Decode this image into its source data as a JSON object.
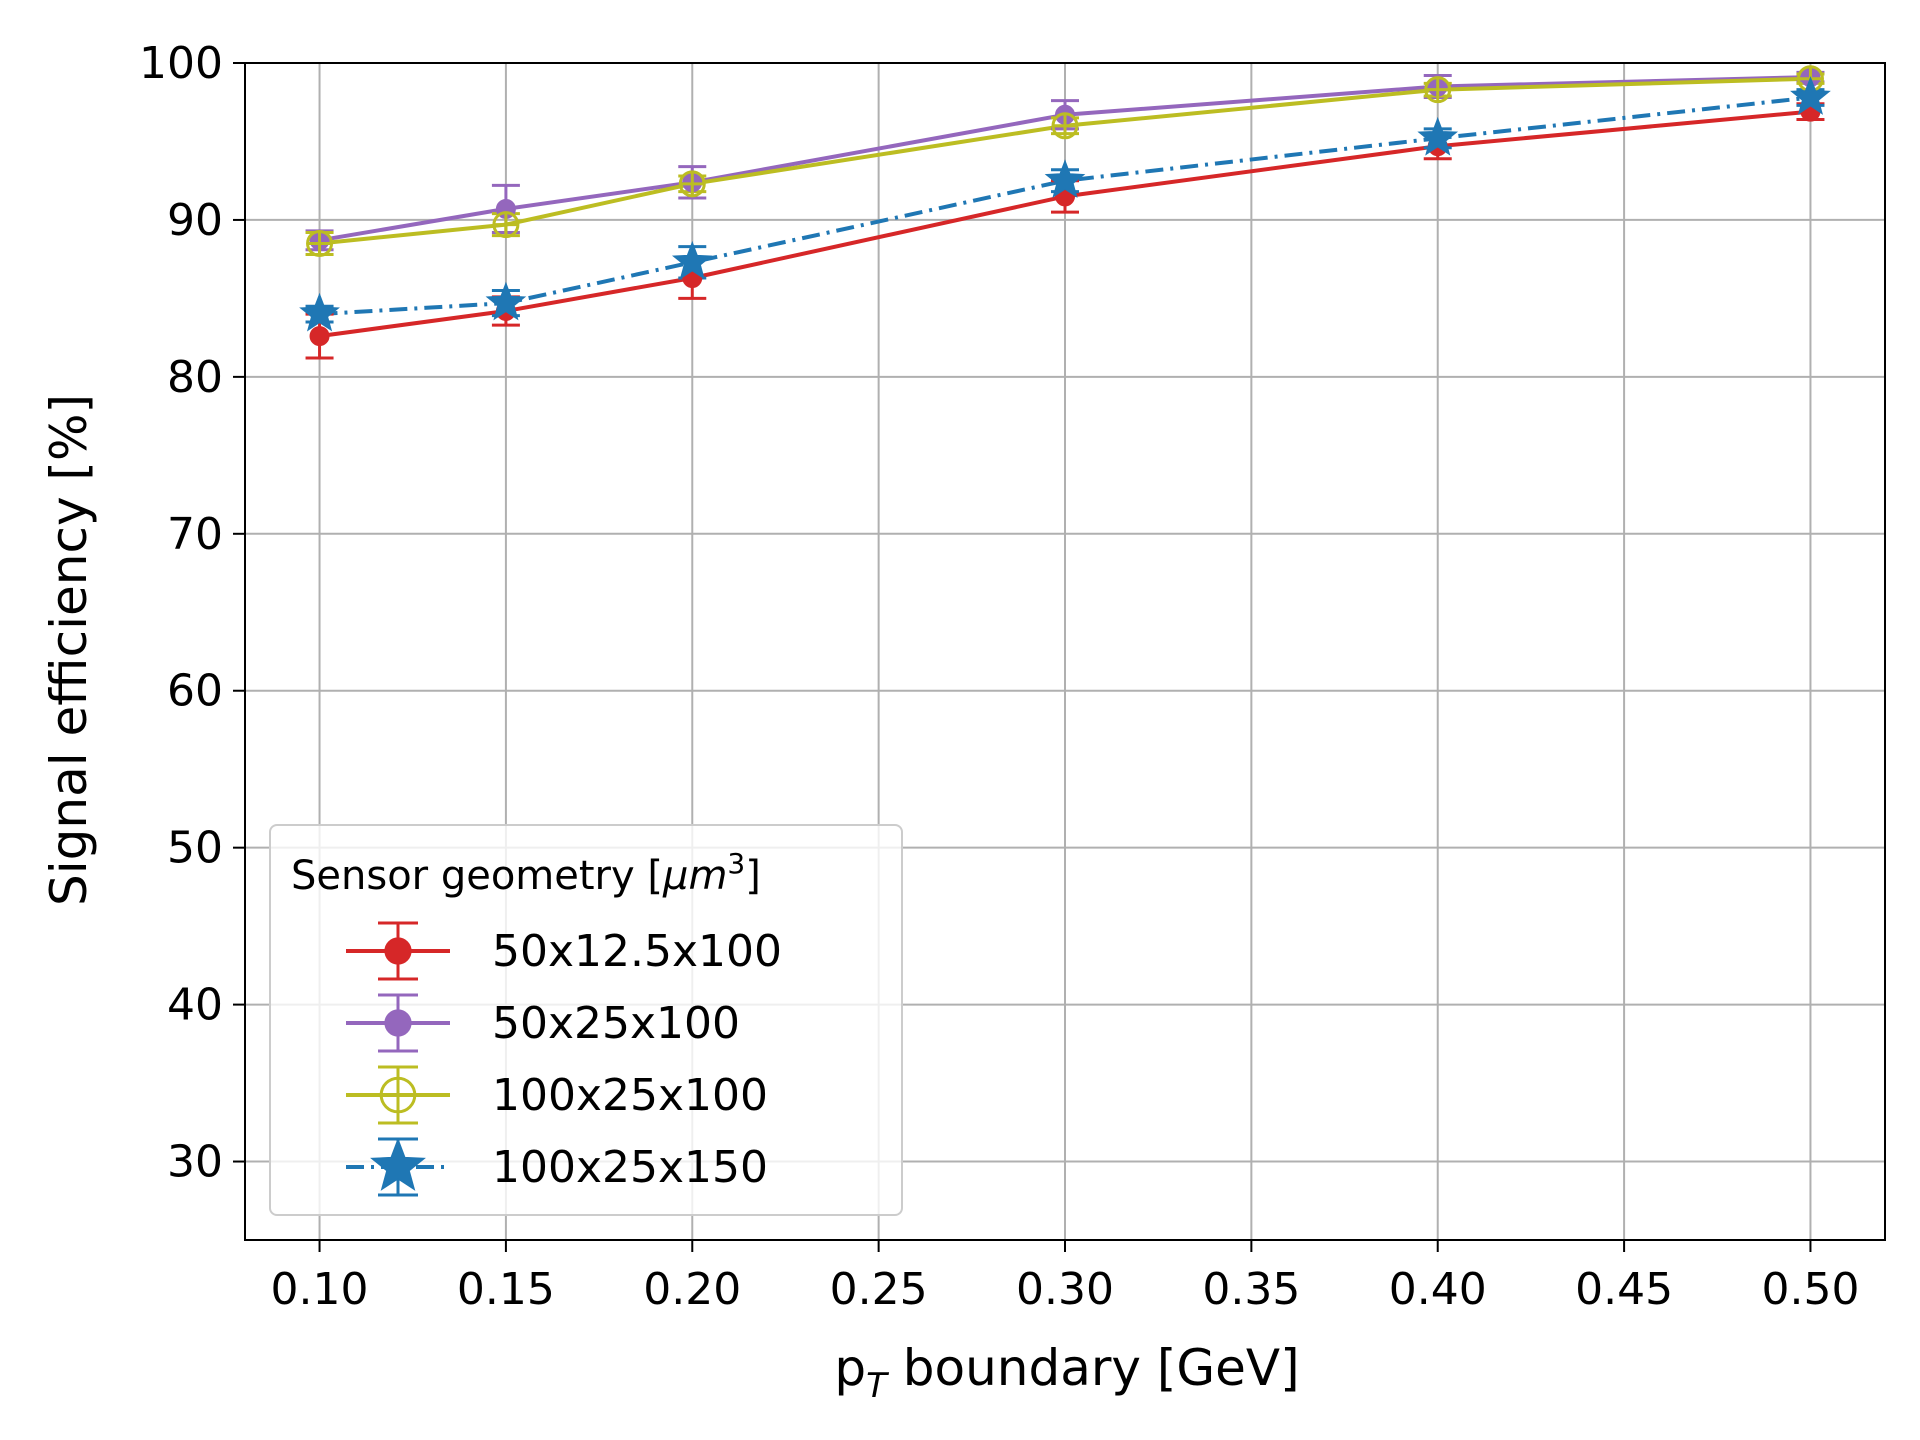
{
  "chart_data": {
    "type": "line",
    "title": "",
    "xlabel": "p",
    "xlabel_subscript": "T",
    "xlabel_rest": " boundary [GeV]",
    "ylabel": "Signal efficiency [%]",
    "xlim": [
      0.08,
      0.52
    ],
    "ylim": [
      25,
      100
    ],
    "xticks": [
      "0.10",
      "0.15",
      "0.20",
      "0.25",
      "0.30",
      "0.35",
      "0.40",
      "0.45",
      "0.50"
    ],
    "yticks": [
      "30",
      "40",
      "50",
      "60",
      "70",
      "80",
      "90",
      "100"
    ],
    "grid": true,
    "legend": {
      "placement": "lower-left",
      "title": "Sensor geometry [",
      "title_math": "μm",
      "title_sup": "3",
      "title_end": "]"
    },
    "x": [
      0.1,
      0.15,
      0.2,
      0.3,
      0.4,
      0.5
    ],
    "series": [
      {
        "name": "50x12.5x100",
        "color": "#d62728",
        "marker": "filled-circle",
        "linestyle": "solid",
        "values": [
          82.6,
          84.2,
          86.3,
          91.5,
          94.7,
          96.9
        ],
        "errors": [
          1.4,
          0.9,
          1.3,
          1.0,
          0.8,
          0.5
        ]
      },
      {
        "name": "50x25x100",
        "color": "#9467bd",
        "marker": "filled-circle",
        "linestyle": "solid",
        "values": [
          88.7,
          90.7,
          92.4,
          96.7,
          98.5,
          99.1
        ],
        "errors": [
          0.6,
          1.5,
          1.0,
          0.9,
          0.7,
          0.3
        ]
      },
      {
        "name": "100x25x100",
        "color": "#bcbd22",
        "marker": "open-circle-cross",
        "linestyle": "solid",
        "values": [
          88.5,
          89.7,
          92.3,
          96.0,
          98.3,
          99.0
        ],
        "errors": [
          0.7,
          0.7,
          0.5,
          0.5,
          0.4,
          0.3
        ]
      },
      {
        "name": "100x25x150",
        "color": "#1f77b4",
        "marker": "star",
        "linestyle": "dashdot",
        "values": [
          84.0,
          84.7,
          87.3,
          92.5,
          95.2,
          97.8
        ],
        "errors": [
          0.5,
          0.8,
          1.0,
          0.7,
          0.6,
          0.5
        ]
      }
    ]
  }
}
